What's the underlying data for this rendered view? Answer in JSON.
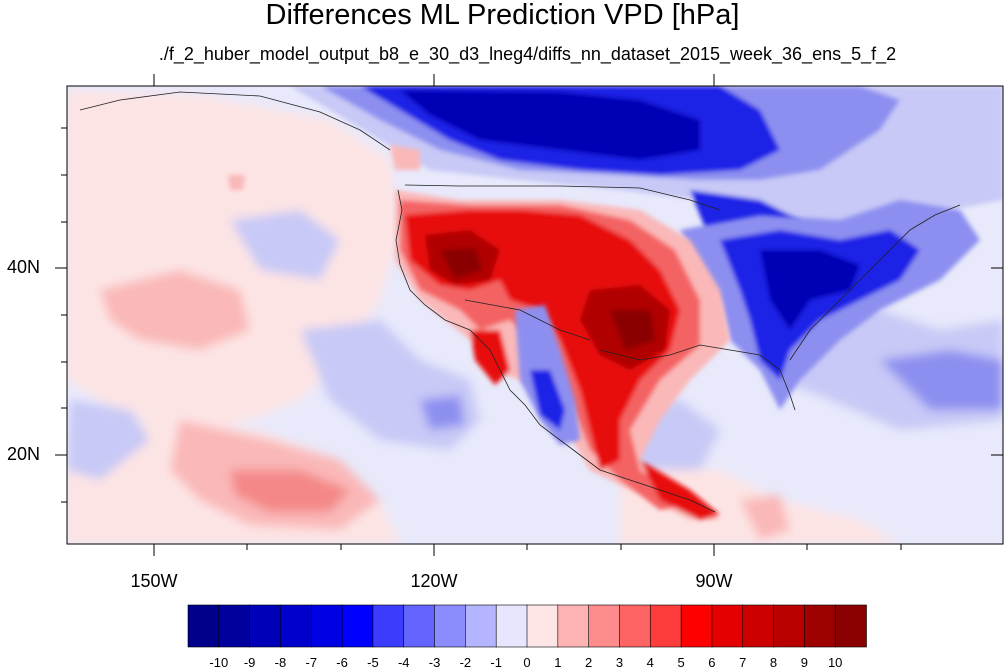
{
  "title": "Differences ML Prediction VPD [hPa]",
  "subtitle": "./f_2_huber_model_output_b8_e_30_d3_lneg4/diffs_nn_dataset_2015_week_36_ens_5_f_2",
  "axes": {
    "lat_labels": [
      "40N",
      "20N"
    ],
    "lon_labels": [
      "150W",
      "120W",
      "90W"
    ]
  },
  "colorbar": {
    "labels": [
      "-10",
      "-9",
      "-8",
      "-7",
      "-6",
      "-5",
      "-4",
      "-3",
      "-2",
      "-1",
      "0",
      "1",
      "2",
      "3",
      "4",
      "5",
      "6",
      "7",
      "8",
      "9",
      "10"
    ],
    "colors": [
      "#00008b",
      "#00009f",
      "#0000b8",
      "#0000cd",
      "#0000e4",
      "#0000ff",
      "#3c3cff",
      "#6464ff",
      "#8c8cff",
      "#b4b4ff",
      "#e6e6ff",
      "#ffe6e6",
      "#ffb4b4",
      "#ff8c8c",
      "#ff6464",
      "#ff3c3c",
      "#ff0000",
      "#e40000",
      "#cd0000",
      "#b80000",
      "#9f0000",
      "#8b0000"
    ]
  },
  "palette": {
    "ocean_bg": "#e8e9fb",
    "light_red": "#fde4e4",
    "pale_blue": "#c8c9f6",
    "mid_blue": "#8d8ff0",
    "deep_blue": "#1c20e6",
    "navy": "#0000b4",
    "light_red2": "#fab8b8",
    "mid_red": "#f46464",
    "red": "#e81010",
    "dark_red": "#b00000",
    "darkest_red": "#8a0000"
  }
}
